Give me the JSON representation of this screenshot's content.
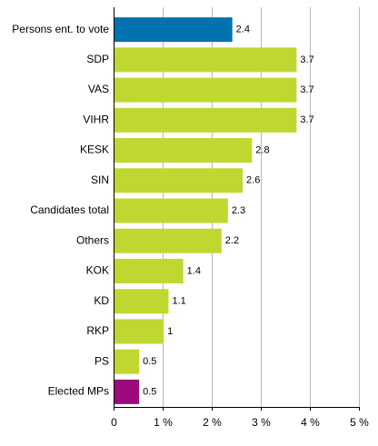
{
  "chart_data": {
    "type": "bar",
    "orientation": "horizontal",
    "title": "",
    "xlabel": "",
    "ylabel": "",
    "categories": [
      "Persons ent. to vote",
      "SDP",
      "VAS",
      "VIHR",
      "KESK",
      "SIN",
      "Candidates total",
      "Others",
      "KOK",
      "KD",
      "RKP",
      "PS",
      "Elected MPs"
    ],
    "value_labels": [
      "2.4",
      "3.7",
      "3.7",
      "3.7",
      "2.8",
      "2.6",
      "2.3",
      "2.2",
      "1.4",
      "1.1",
      "1",
      "0.5",
      "0.5"
    ],
    "values": [
      2.42,
      3.73,
      3.73,
      3.73,
      2.82,
      2.63,
      2.33,
      2.2,
      1.42,
      1.12,
      1.02,
      0.52,
      0.52
    ],
    "bar_colors": [
      "#0072b0",
      "#bfd730",
      "#bfd730",
      "#bfd730",
      "#bfd730",
      "#bfd730",
      "#bfd730",
      "#bfd730",
      "#bfd730",
      "#bfd730",
      "#bfd730",
      "#bfd730",
      "#9e0a7c"
    ],
    "xlim": [
      0,
      5
    ],
    "xticks": [
      "0",
      "1 %",
      "2 %",
      "3 %",
      "4 %",
      "5 %"
    ],
    "grid": true,
    "legend": false
  }
}
